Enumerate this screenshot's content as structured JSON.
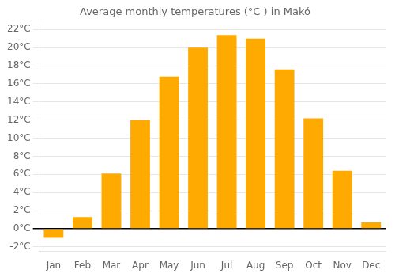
{
  "chart_data": {
    "type": "bar",
    "title": "Average monthly temperatures (°C ) in Makó",
    "categories": [
      "Jan",
      "Feb",
      "Mar",
      "Apr",
      "May",
      "Jun",
      "Jul",
      "Aug",
      "Sep",
      "Oct",
      "Nov",
      "Dec"
    ],
    "values": [
      -1.0,
      1.3,
      6.1,
      12.0,
      16.8,
      20.0,
      21.4,
      21.0,
      17.6,
      12.2,
      6.4,
      0.7
    ],
    "color": "#FFAA00",
    "ylim": [
      -2.5,
      22.5
    ],
    "yticks": [
      {
        "value": -2,
        "label": "-2°C"
      },
      {
        "value": 0,
        "label": "0°C"
      },
      {
        "value": 2,
        "label": "2°C"
      },
      {
        "value": 4,
        "label": "4°C"
      },
      {
        "value": 6,
        "label": "6°C"
      },
      {
        "value": 8,
        "label": "8°C"
      },
      {
        "value": 10,
        "label": "10°C"
      },
      {
        "value": 12,
        "label": "12°C"
      },
      {
        "value": 14,
        "label": "14°C"
      },
      {
        "value": 16,
        "label": "16°C"
      },
      {
        "value": 18,
        "label": "18°C"
      },
      {
        "value": 20,
        "label": "20°C"
      },
      {
        "value": 22,
        "label": "22°C"
      }
    ],
    "grid": true
  }
}
